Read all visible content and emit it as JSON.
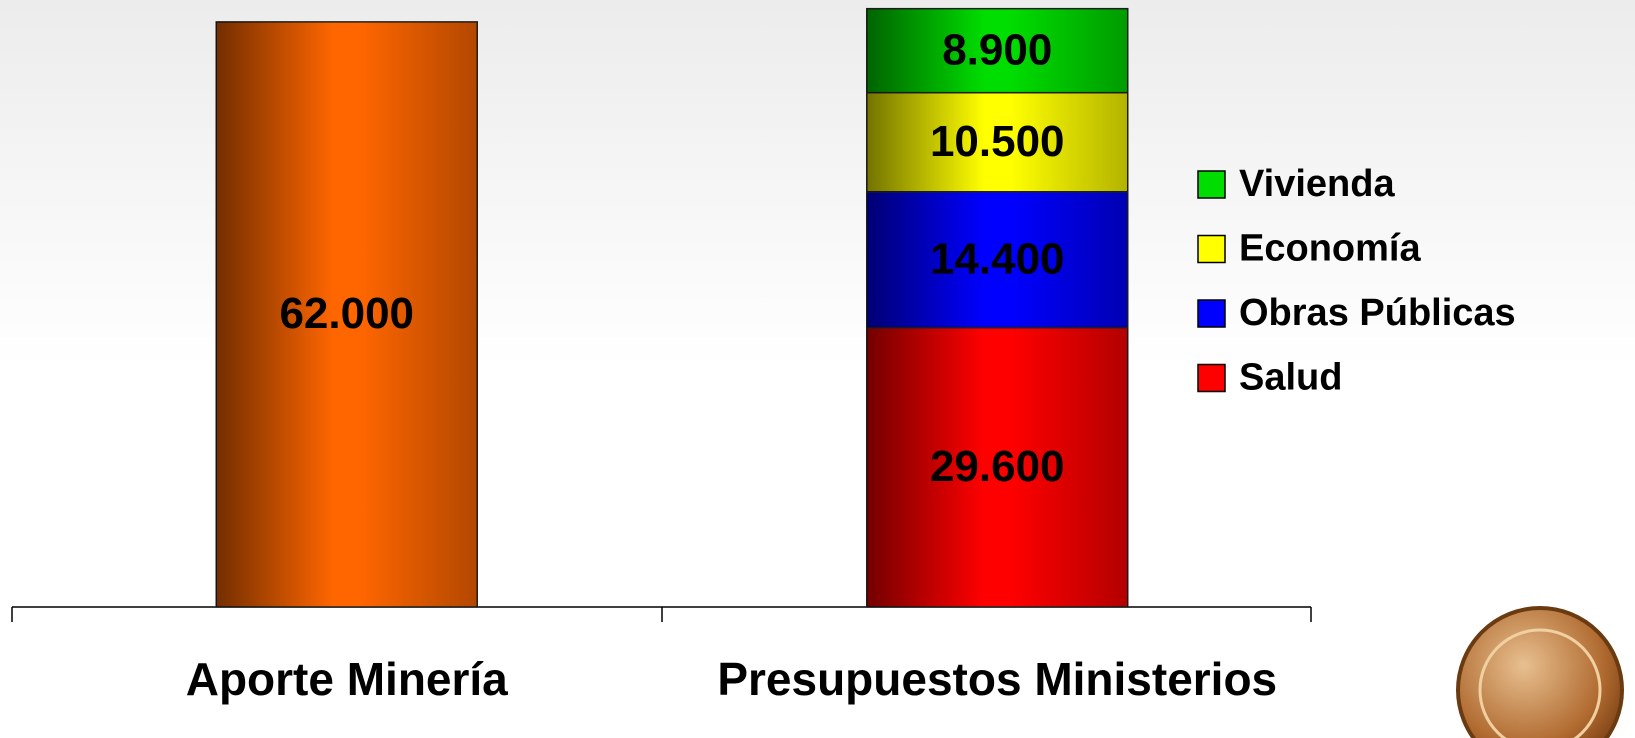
{
  "chart_data": {
    "type": "stacked_bar",
    "categories": [
      "Aporte Minería",
      "Presupuestos Ministerios"
    ],
    "series": [
      {
        "color": "#ff6600",
        "values": [
          62000,
          null
        ],
        "value_labels": [
          "62.000",
          null
        ]
      },
      {
        "name": "Salud",
        "color": "#ff0000",
        "values": [
          null,
          29600
        ],
        "value_labels": [
          null,
          "29.600"
        ]
      },
      {
        "name": "Obras Públicas",
        "color": "#0000ff",
        "values": [
          null,
          14400
        ],
        "value_labels": [
          null,
          "14.400"
        ]
      },
      {
        "name": "Economía",
        "color": "#ffff00",
        "values": [
          null,
          10500
        ],
        "value_labels": [
          null,
          "10.500"
        ]
      },
      {
        "name": "Vivienda",
        "color": "#00dd00",
        "values": [
          null,
          8900
        ],
        "value_labels": [
          null,
          "8.900"
        ]
      }
    ],
    "ylim": [
      0,
      64000
    ],
    "legend": "right"
  }
}
